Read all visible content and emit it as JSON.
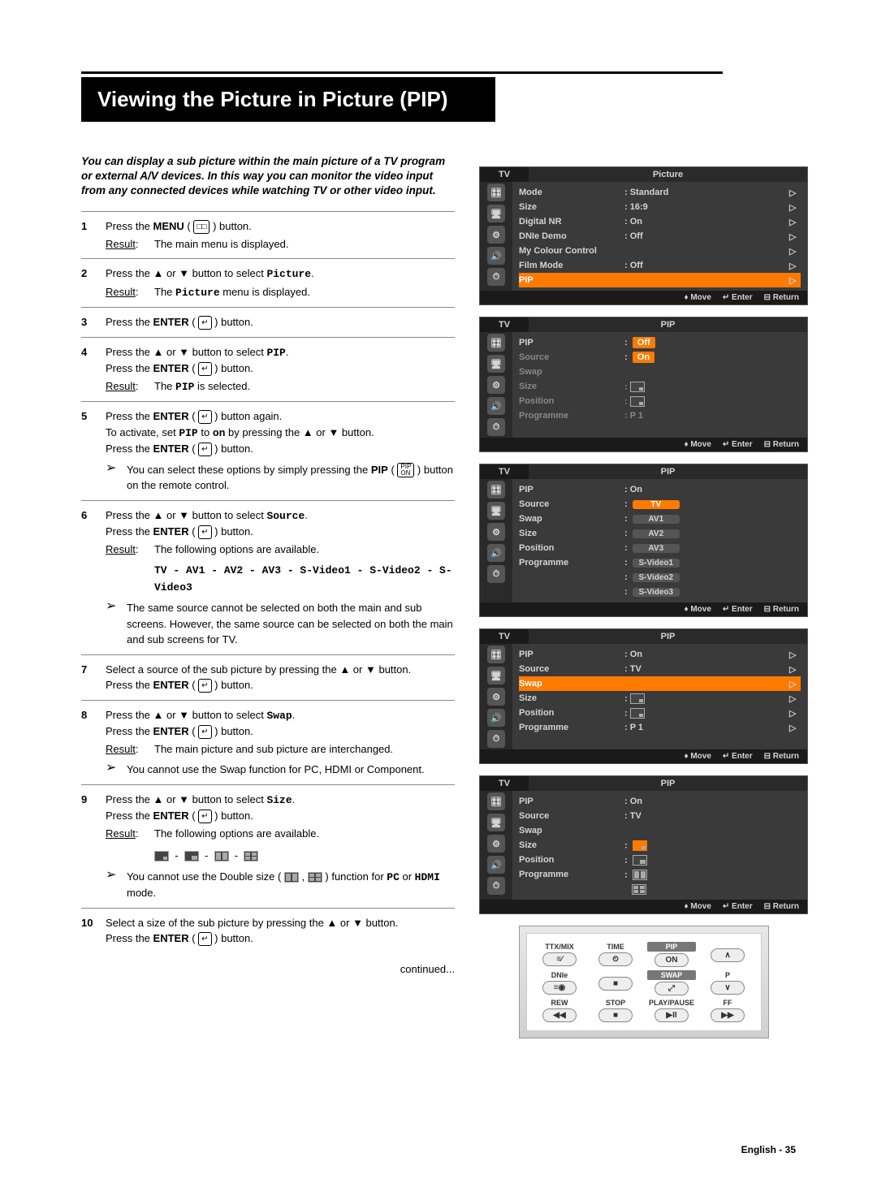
{
  "title": "Viewing the Picture in Picture (PIP)",
  "intro": "You can display a sub picture within the main picture of a TV program or external A/V devices. In this way you can monitor the video input from any connected devices while watching TV or other video input.",
  "steps": [
    {
      "n": "1",
      "body": "Press the <b>MENU</b> ( <span class='icon-box'>&#9633;&#9633;</span> ) button.",
      "result": "The main menu is displayed."
    },
    {
      "n": "2",
      "body": "Press the ▲ or ▼ button to select <span class='mono'>Picture</span>.",
      "result": "The <span class='mono'>Picture</span> menu is displayed."
    },
    {
      "n": "3",
      "body": "Press the <b>ENTER</b> ( <span class='icon-box'>↵</span> ) button."
    },
    {
      "n": "4",
      "body": "Press the ▲ or ▼ button to select <span class='mono'>PIP</span>.<br>Press the <b>ENTER</b> ( <span class='icon-box'>↵</span> ) button.",
      "result": "The <span class='mono'>PIP</span> is selected."
    },
    {
      "n": "5",
      "body": "Press the <b>ENTER</b> ( <span class='icon-box'>↵</span> ) button again.<br>To activate, set <span class='mono'>PIP</span> to <span class='mono'>on</span> by pressing the ▲ or ▼ button.<br>Press the <b>ENTER</b> ( <span class='icon-box'>↵</span> ) button.",
      "note": "You can select these options by simply pressing the <b>PIP</b> ( <span class='icon-box' style='font-size:8px;line-height:1'>PIP<br>ON</span> ) button on the remote control."
    },
    {
      "n": "6",
      "body": "Press the ▲ or ▼ button to select <span class='mono'>Source</span>.<br>Press the <b>ENTER</b> ( <span class='icon-box'>↵</span> ) button.",
      "result": "The following options are available.",
      "extra": "<span class='mono'>TV - AV1 - AV2 - AV3 - S-Video1 - S-Video2 - S-Video3</span>",
      "note": "The same source cannot be selected on both the main and sub screens. However, the same source can be selected on both the main and sub screens for TV."
    },
    {
      "n": "7",
      "body": "Select a source of the sub picture by pressing the ▲ or ▼ button.<br>Press the <b>ENTER</b> ( <span class='icon-box'>↵</span> ) button."
    },
    {
      "n": "8",
      "body": "Press the ▲ or ▼ button to select <span class='mono'>Swap</span>.<br>Press the <b>ENTER</b> ( <span class='icon-box'>↵</span> ) button.",
      "result": "The main picture and sub picture are interchanged.",
      "note": "You cannot use the Swap function for PC, HDMI or Component."
    },
    {
      "n": "9",
      "body": "Press the ▲ or ▼ button to select <span class='mono'>Size</span>.<br>Press the <b>ENTER</b> ( <span class='icon-box'>↵</span> ) button.",
      "result": "The following options are available.",
      "sizes": true,
      "note": "You cannot use the Double size ( <span class='sz-ic sz3'></span> , <span class='sz-ic sz4'></span> ) function for <span class='mono'>PC</span> or <span class='mono'>HDMI</span> mode."
    },
    {
      "n": "10",
      "body": "Select a size of the sub picture by pressing the ▲ or ▼ button.<br>Press the <b>ENTER</b> ( <span class='icon-box'>↵</span> ) button."
    }
  ],
  "continued": "continued...",
  "footer": "English - 35",
  "osd": {
    "tv": "TV",
    "move": "Move",
    "enter": "Enter",
    "return": "Return",
    "picture": {
      "title": "Picture",
      "rows": [
        {
          "l": "Mode",
          "v": ": Standard",
          "a": "▷"
        },
        {
          "l": "Size",
          "v": ": 16:9",
          "a": "▷"
        },
        {
          "l": "Digital NR",
          "v": ": On",
          "a": "▷"
        },
        {
          "l": "DNIe Demo",
          "v": ": Off",
          "a": "▷"
        },
        {
          "l": "My Colour Control",
          "v": "",
          "a": "▷"
        },
        {
          "l": "Film Mode",
          "v": ": Off",
          "a": "▷"
        },
        {
          "l": "PIP",
          "v": "",
          "a": "▷",
          "hl": true
        }
      ]
    },
    "pip1": {
      "title": "PIP",
      "rows": [
        {
          "l": "PIP",
          "v": "",
          "opts": [
            "Off",
            "On"
          ],
          "optHl": 0
        },
        {
          "l": "Source",
          "v": ":"
        },
        {
          "l": "Swap",
          "v": ""
        },
        {
          "l": "Size",
          "v": ":"
        },
        {
          "l": "Position",
          "v": ":"
        },
        {
          "l": "Programme",
          "v": ": P   1"
        }
      ]
    },
    "pip2": {
      "title": "PIP",
      "rows": [
        {
          "l": "PIP",
          "v": ": On"
        },
        {
          "l": "Source",
          "v": "",
          "srcList": [
            "TV",
            "AV1",
            "AV2",
            "AV3",
            "S-Video1",
            "S-Video2",
            "S-Video3"
          ]
        },
        {
          "l": "Swap",
          "v": ""
        },
        {
          "l": "Size",
          "v": ":"
        },
        {
          "l": "Position",
          "v": ":"
        },
        {
          "l": "Programme",
          "v": ":"
        }
      ]
    },
    "pip3": {
      "title": "PIP",
      "rows": [
        {
          "l": "PIP",
          "v": ": On",
          "a": "▷"
        },
        {
          "l": "Source",
          "v": ": TV",
          "a": "▷"
        },
        {
          "l": "Swap",
          "v": "",
          "a": "▷",
          "hl": true
        },
        {
          "l": "Size",
          "v": ":",
          "a": "▷",
          "szIcon": "sz1"
        },
        {
          "l": "Position",
          "v": ":",
          "a": "▷",
          "szIcon": "sz1"
        },
        {
          "l": "Programme",
          "v": ": P   1",
          "a": "▷"
        }
      ]
    },
    "pip4": {
      "title": "PIP",
      "rows": [
        {
          "l": "PIP",
          "v": ": On"
        },
        {
          "l": "Source",
          "v": ": TV"
        },
        {
          "l": "Swap",
          "v": ""
        },
        {
          "l": "Size",
          "v": ":",
          "sizeOpts": true
        },
        {
          "l": "Position",
          "v": ":"
        },
        {
          "l": "Programme",
          "v": ":"
        }
      ]
    }
  },
  "remote": {
    "row1": [
      "TTX/MIX",
      "TIME",
      "PIP",
      ""
    ],
    "row1b": [
      "≡⁄",
      "⏲",
      "ON",
      "∧"
    ],
    "row2": [
      "DNIe",
      "",
      "SWAP",
      "P"
    ],
    "row2b": [
      "≡◉",
      "■",
      "⤢",
      "∨"
    ],
    "row3": [
      "REW",
      "STOP",
      "PLAY/PAUSE",
      "FF"
    ],
    "row3b": [
      "◀◀",
      "■",
      "▶II",
      "▶▶"
    ]
  }
}
